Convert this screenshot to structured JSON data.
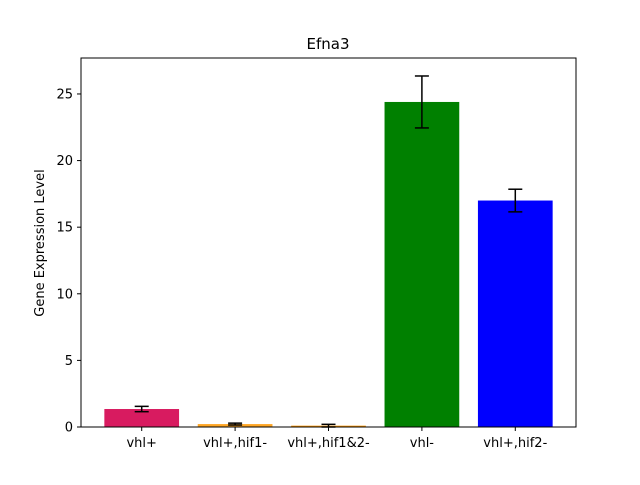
{
  "chart_data": {
    "type": "bar",
    "title": "Efna3",
    "xlabel": "",
    "ylabel": "Gene Expression Level",
    "categories": [
      "vhl+",
      "vhl+,hif1-",
      "vhl+,hif1&2-",
      "vhl-",
      "vhl+,hif2-"
    ],
    "values": [
      1.35,
      0.22,
      0.1,
      24.4,
      17.0
    ],
    "errors": [
      0.2,
      0.07,
      0.1,
      1.95,
      0.85
    ],
    "colors": [
      "#d81b60",
      "#ffa726",
      "#ff9800",
      "#008000",
      "#0000ff"
    ],
    "ylim": [
      0,
      27.7
    ],
    "yticks": [
      0,
      5,
      10,
      15,
      20,
      25
    ],
    "grid": false,
    "legend": "none"
  }
}
